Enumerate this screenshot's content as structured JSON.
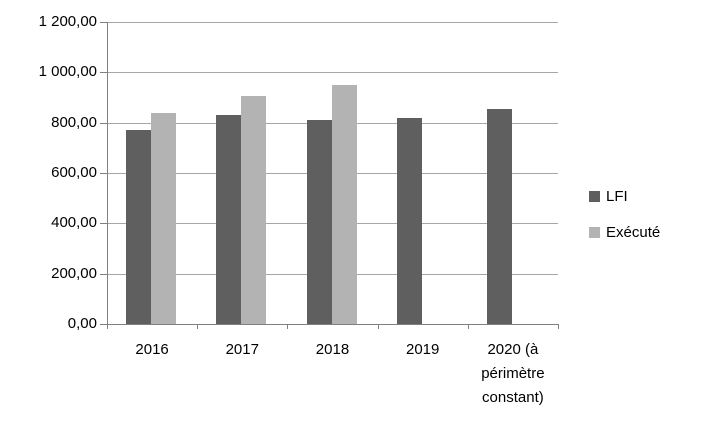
{
  "chart_data": {
    "type": "bar",
    "title": "",
    "xlabel": "",
    "ylabel": "",
    "categories": [
      "2016",
      "2017",
      "2018",
      "2019",
      "2020 (à périmètre constant)"
    ],
    "category_keys": [
      "2016",
      "2017",
      "2018",
      "2019",
      "2020"
    ],
    "series": [
      {
        "name": "LFI",
        "key": "lfi",
        "color": "#5f5f5f",
        "values": [
          770,
          830,
          810,
          820,
          855
        ]
      },
      {
        "name": "Exécuté",
        "key": "execute",
        "color": "#b3b3b3",
        "values": [
          840,
          905,
          950,
          null,
          null
        ]
      }
    ],
    "ylim": [
      0,
      1200
    ],
    "ytick_step": 200,
    "y_tick_labels": [
      "0,00",
      "200,00",
      "400,00",
      "600,00",
      "800,00",
      "1 000,00",
      "1 200,00"
    ],
    "number_format": "french (space thousands separator, comma decimals)",
    "grid": "horizontal",
    "legend_position": "right",
    "colors": {
      "gridline": "#a6a6a6",
      "axis": "#808080",
      "text": "#000000",
      "background": "#ffffff"
    }
  }
}
